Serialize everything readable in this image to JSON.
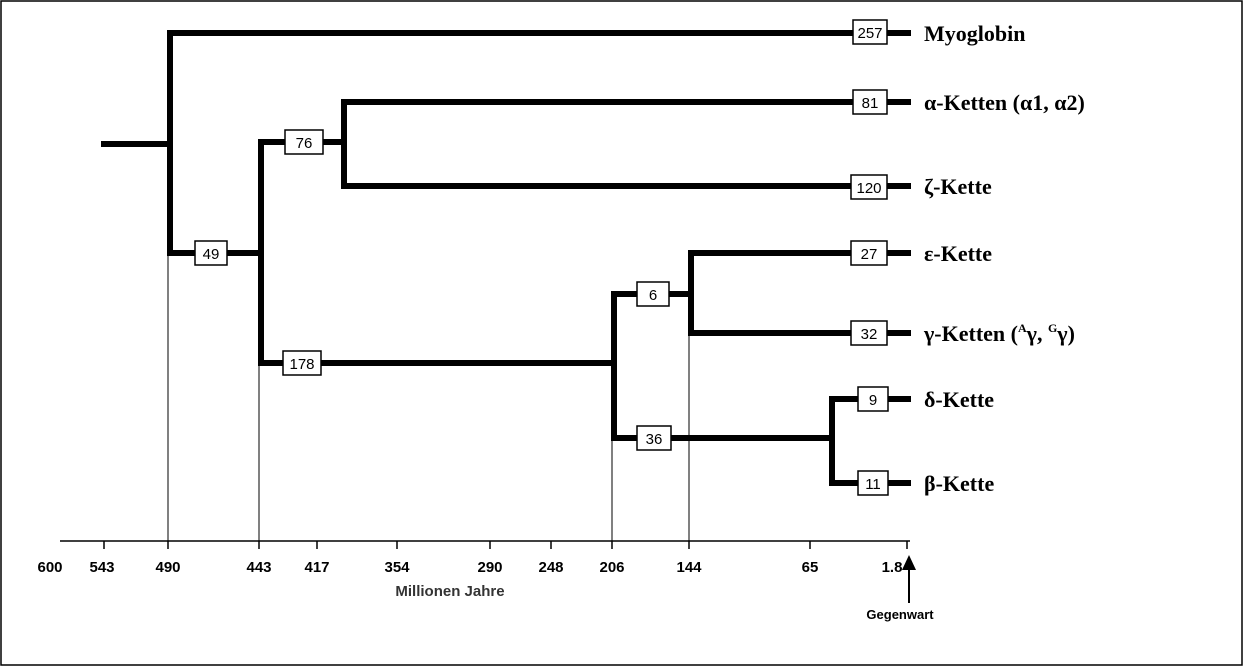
{
  "axis": {
    "title": "Millionen Jahre",
    "present_label": "Gegenwart",
    "ticks": [
      "600",
      "543",
      "490",
      "443",
      "417",
      "354",
      "290",
      "248",
      "206",
      "144",
      "65",
      "1.8"
    ]
  },
  "branch_values": {
    "myoglobin": "257",
    "alpha": "81",
    "alpha_zeta": "76",
    "zeta": "120",
    "lower": "49",
    "beta_cluster": "178",
    "epsilon": "27",
    "epsilon_gamma": "6",
    "gamma": "32",
    "delta_beta": "36",
    "delta": "9",
    "beta": "11"
  },
  "labels": {
    "myoglobin": "Myoglobin",
    "alpha": {
      "symbol": "α",
      "text": "-Ketten (",
      "s1": "α",
      "n1": "1, ",
      "s2": "α",
      "n2": "2)"
    },
    "zeta": {
      "symbol": "ζ",
      "text": "-Kette"
    },
    "epsilon": {
      "symbol": "ε",
      "text": "-Kette"
    },
    "gamma": {
      "symbol": "γ",
      "text": "-Ketten (",
      "sup1": "A",
      "s1": "γ",
      "sep": ", ",
      "sup2": "G",
      "s2": "γ",
      "close": ")"
    },
    "delta": {
      "symbol": "δ",
      "text": "-Kette"
    },
    "beta": {
      "symbol": "β",
      "text": "-Kette"
    }
  }
}
